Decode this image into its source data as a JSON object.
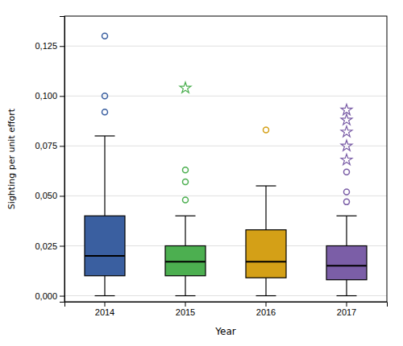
{
  "chart_data": {
    "type": "box",
    "xlabel": "Year",
    "ylabel": "Sighting per unit effort",
    "categories": [
      "2014",
      "2015",
      "2016",
      "2017"
    ],
    "colors": [
      "#3a5fa0",
      "#4caf50",
      "#d4a017",
      "#7b5ea7"
    ],
    "boxes": [
      {
        "whisker_low": 0.0,
        "q1": 0.01,
        "median": 0.02,
        "q3": 0.04,
        "whisker_high": 0.08,
        "outliers": [
          0.092,
          0.1,
          0.13
        ],
        "extreme_outliers": []
      },
      {
        "whisker_low": 0.0,
        "q1": 0.01,
        "median": 0.017,
        "q3": 0.025,
        "whisker_high": 0.04,
        "outliers": [
          0.048,
          0.057,
          0.063
        ],
        "extreme_outliers": [
          0.104
        ]
      },
      {
        "whisker_low": 0.0,
        "q1": 0.009,
        "median": 0.017,
        "q3": 0.033,
        "whisker_high": 0.055,
        "outliers": [
          0.083
        ],
        "extreme_outliers": []
      },
      {
        "whisker_low": 0.0,
        "q1": 0.008,
        "median": 0.015,
        "q3": 0.025,
        "whisker_high": 0.04,
        "outliers": [
          0.047,
          0.052,
          0.062
        ],
        "extreme_outliers": [
          0.068,
          0.075,
          0.082,
          0.088,
          0.093
        ]
      }
    ],
    "ylim": [
      -0.003,
      0.14
    ],
    "yticks": [
      {
        "value": 0.0,
        "label": "0,000"
      },
      {
        "value": 0.025,
        "label": "0,025"
      },
      {
        "value": 0.05,
        "label": "0,050"
      },
      {
        "value": 0.075,
        "label": "0,075"
      },
      {
        "value": 0.1,
        "label": "0,100"
      },
      {
        "value": 0.125,
        "label": "0,125"
      }
    ],
    "grid": true
  }
}
